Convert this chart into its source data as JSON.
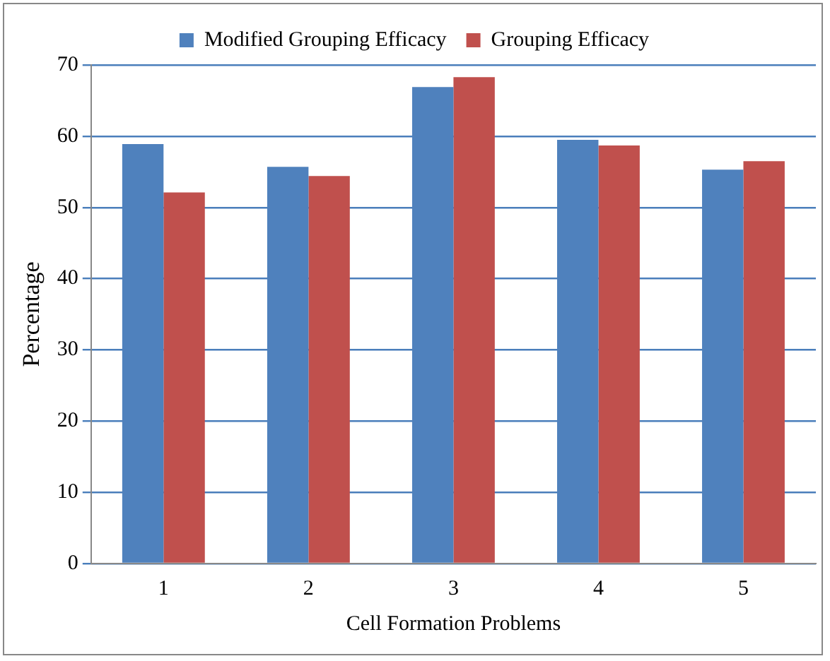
{
  "chart_data": {
    "type": "bar",
    "xlabel": "Cell Formation Problems",
    "ylabel": "Percentage",
    "categories": [
      "1",
      "2",
      "3",
      "4",
      "5"
    ],
    "series": [
      {
        "name": "Modified Grouping Efficacy",
        "color": "#4f81bd",
        "values": [
          58.9,
          55.7,
          66.9,
          59.5,
          55.3
        ]
      },
      {
        "name": "Grouping Efficacy",
        "color": "#c0504d",
        "values": [
          52.1,
          54.4,
          68.3,
          58.7,
          56.5
        ]
      }
    ],
    "ylim": [
      0,
      70
    ],
    "yticks": [
      0,
      10,
      20,
      30,
      40,
      50,
      60,
      70
    ],
    "grid": "y",
    "legend": "top"
  }
}
